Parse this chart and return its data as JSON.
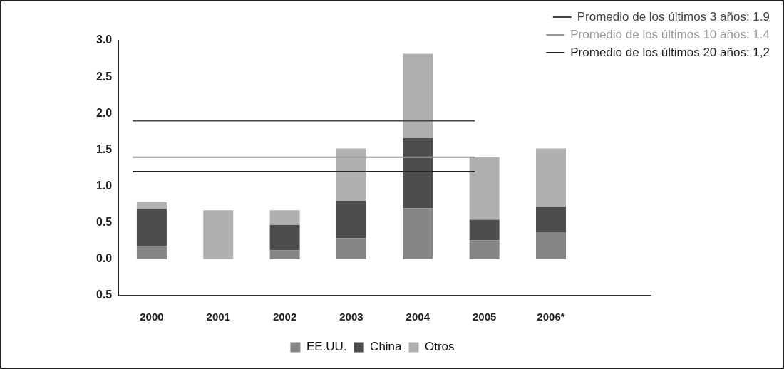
{
  "chart_data": {
    "type": "bar",
    "stacked": true,
    "categories": [
      "2000",
      "2001",
      "2002",
      "2003",
      "2004",
      "2005",
      "2006*",
      null
    ],
    "series": [
      {
        "name": "EE.UU.",
        "color": "#858585",
        "values": [
          0.18,
          0,
          0.12,
          0.29,
          0.7,
          0.26,
          0.37,
          null
        ]
      },
      {
        "name": "China",
        "color": "#4d4d4d",
        "values": [
          0.51,
          0,
          0.35,
          0.51,
          0.96,
          0.28,
          0.35,
          null
        ]
      },
      {
        "name": "Otros",
        "color": "#b0b0b0",
        "values": [
          0.09,
          0.67,
          0.2,
          0.72,
          1.16,
          0.86,
          0.8,
          null
        ]
      }
    ],
    "ylim": [
      -0.5,
      3.0
    ],
    "yticks": [
      {
        "value": -0.5,
        "label": "0.5"
      },
      {
        "value": 0,
        "label": "0.0"
      },
      {
        "value": 0.5,
        "label": "0.5"
      },
      {
        "value": 1,
        "label": "1.0"
      },
      {
        "value": 1.5,
        "label": "1.5"
      },
      {
        "value": 2,
        "label": "2.0"
      },
      {
        "value": 2.5,
        "label": "2.5"
      },
      {
        "value": 3,
        "label": "3.0"
      }
    ],
    "ref_lines": [
      {
        "axis": "y",
        "value": 1.9,
        "label": "Promedio de los últimos 3 años: 1.9",
        "color": "#444444"
      },
      {
        "axis": "y",
        "value": 1.4,
        "label": "Promedio de los últimos 10 años: 1.4",
        "color": "#999999"
      },
      {
        "axis": "y",
        "value": 1.2,
        "label": "Promedio de los últimos 20 años: 1,2",
        "color": "#222222"
      }
    ],
    "grid": false,
    "legend": "bottom"
  }
}
